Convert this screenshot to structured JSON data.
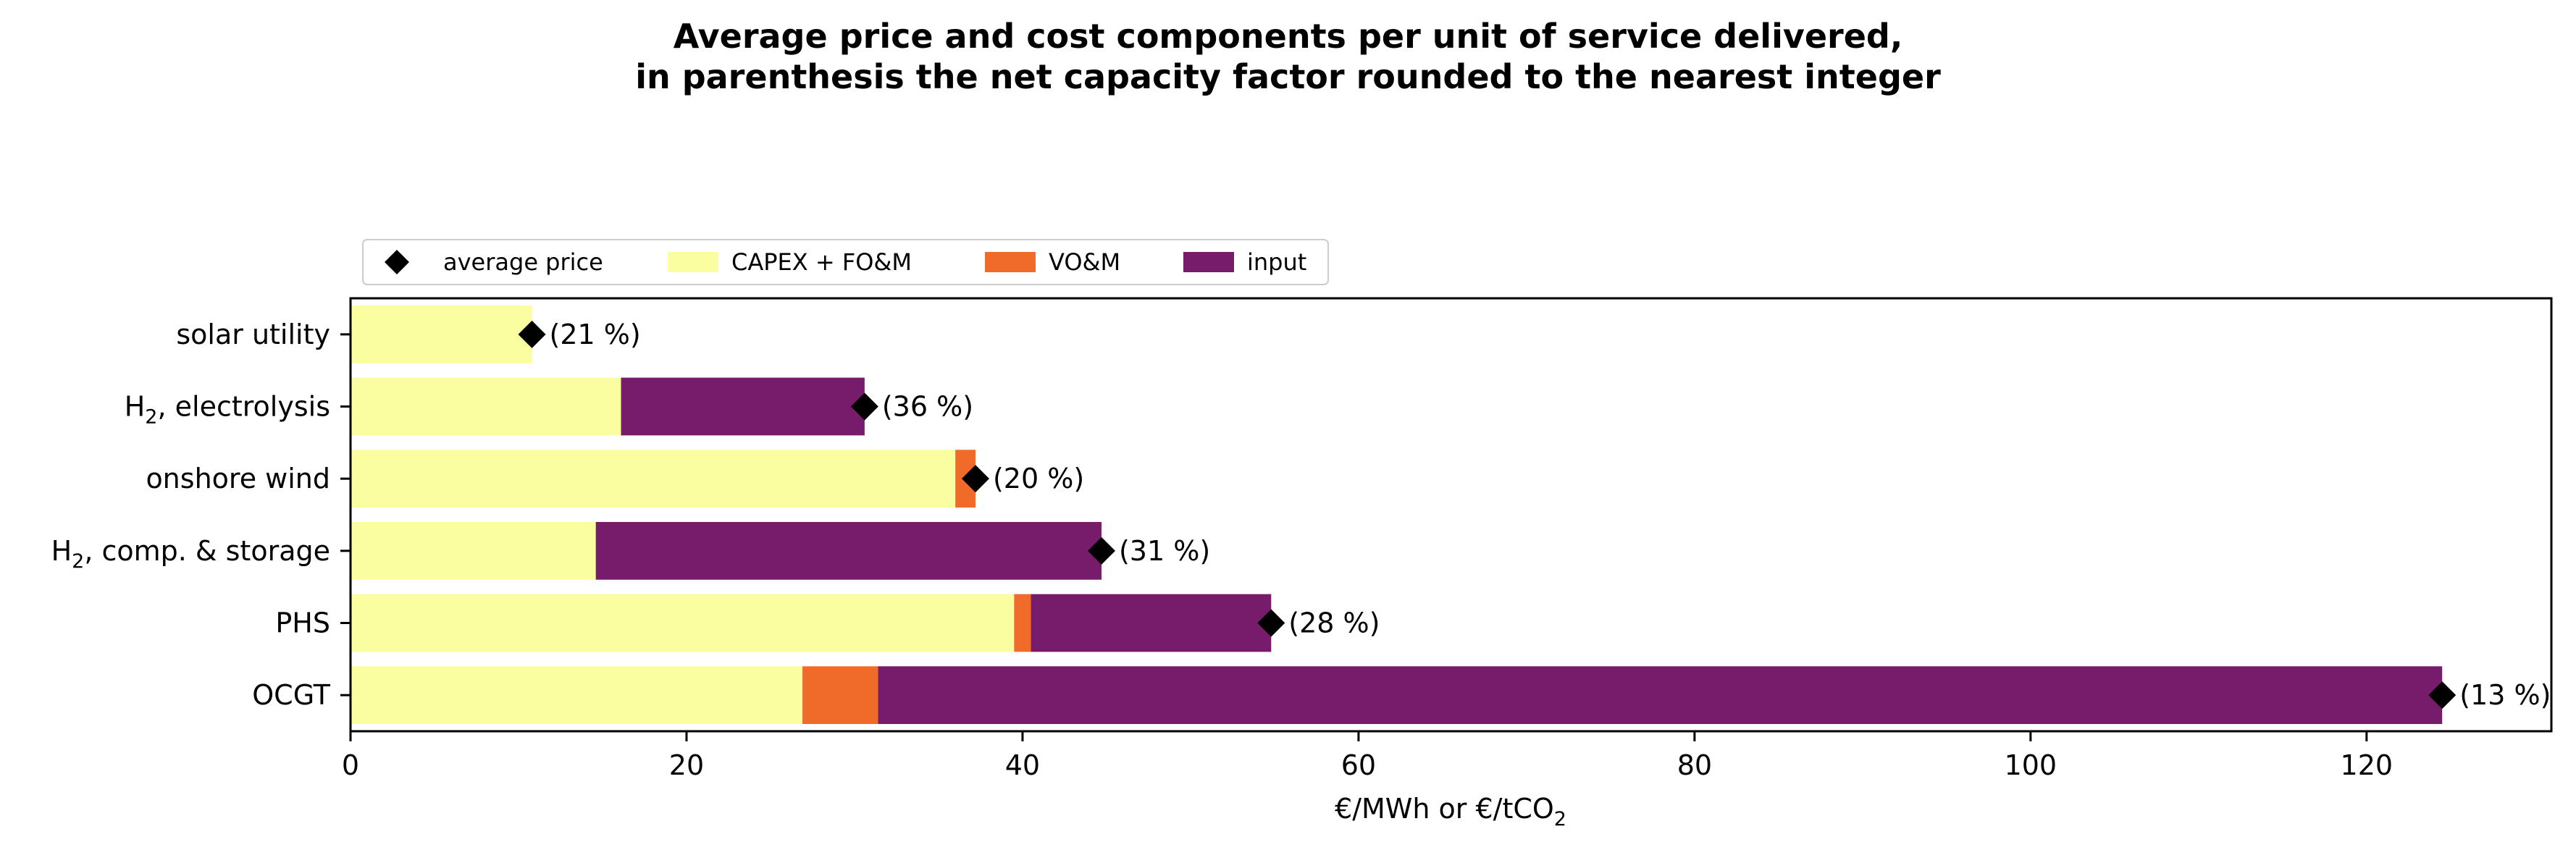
{
  "chart_data": {
    "type": "bar",
    "orientation": "horizontal",
    "stacked": true,
    "title_line1": "Average price and cost components per unit of service delivered,",
    "title_line2": "in parenthesis the net capacity factor rounded to the nearest integer",
    "xlabel": "€/MWh or €/tCO",
    "xlabel_subscript": "2",
    "ylabel": "",
    "xlim": [
      0,
      131
    ],
    "xticks": [
      0,
      20,
      40,
      60,
      80,
      100,
      120
    ],
    "grid": false,
    "legend_placement": "top-left, above plot",
    "legend": [
      {
        "name": "average price",
        "marker": "diamond",
        "color": "#000000"
      },
      {
        "name": "CAPEX + FO&M",
        "marker": "patch",
        "color": "#fafda0"
      },
      {
        "name": "VO&M",
        "marker": "patch",
        "color": "#f06b2a"
      },
      {
        "name": "input",
        "marker": "patch",
        "color": "#771c6b"
      }
    ],
    "categories": [
      {
        "label": "solar utility",
        "main": "solar utility",
        "sub": "",
        "rest": ""
      },
      {
        "label": "H2, electrolysis",
        "main": "H",
        "sub": "2",
        "rest": ", electrolysis"
      },
      {
        "label": "onshore wind",
        "main": "onshore wind",
        "sub": "",
        "rest": ""
      },
      {
        "label": "H2, comp. & storage",
        "main": "H",
        "sub": "2",
        "rest": ", comp. & storage"
      },
      {
        "label": "PHS",
        "main": "PHS",
        "sub": "",
        "rest": ""
      },
      {
        "label": "OCGT",
        "main": "OCGT",
        "sub": "",
        "rest": ""
      }
    ],
    "series": [
      {
        "name": "CAPEX + FO&M",
        "color": "#fafda0",
        "values": [
          10.8,
          16.1,
          36.0,
          14.6,
          39.5,
          26.9
        ]
      },
      {
        "name": "VO&M",
        "color": "#f06b2a",
        "values": [
          0.0,
          0.0,
          1.2,
          0.0,
          1.0,
          4.5
        ]
      },
      {
        "name": "input",
        "color": "#771c6b",
        "values": [
          0.0,
          14.5,
          0.0,
          30.1,
          14.3,
          93.1
        ]
      }
    ],
    "average_price": [
      10.8,
      30.6,
      37.2,
      44.7,
      54.8,
      124.5
    ],
    "capacity_factor_labels": [
      "(21 %)",
      "(36 %)",
      "(20 %)",
      "(31 %)",
      "(28 %)",
      "(13 %)"
    ]
  }
}
